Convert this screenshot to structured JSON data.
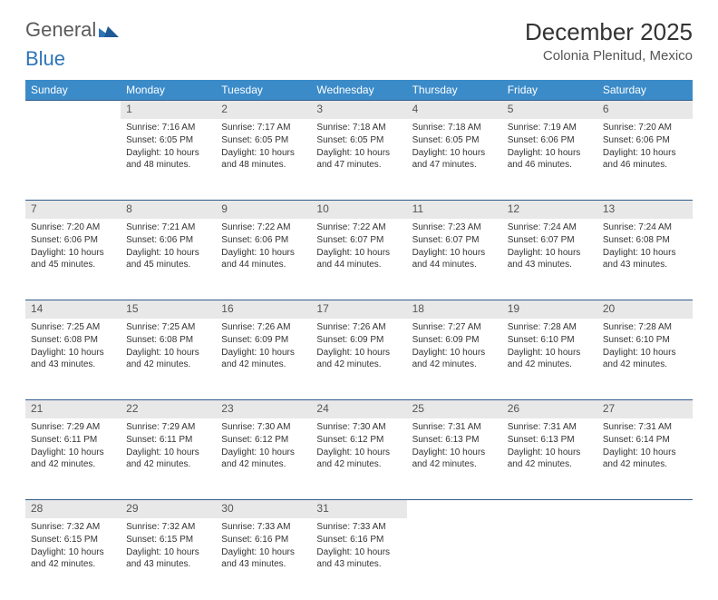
{
  "logo": {
    "text_a": "General",
    "text_b": "Blue"
  },
  "title": "December 2025",
  "location": "Colonia Plenitud, Mexico",
  "weekdays": [
    "Sunday",
    "Monday",
    "Tuesday",
    "Wednesday",
    "Thursday",
    "Friday",
    "Saturday"
  ],
  "header_bg": "#3b8bc9",
  "header_fg": "#ffffff",
  "daynum_bg": "#e8e8e8",
  "border_color": "#2e5c8a",
  "cell_fontsize": 10,
  "weeks": [
    [
      {
        "n": "",
        "sunrise": "",
        "sunset": "",
        "daylight": ""
      },
      {
        "n": "1",
        "sunrise": "Sunrise: 7:16 AM",
        "sunset": "Sunset: 6:05 PM",
        "daylight": "Daylight: 10 hours and 48 minutes."
      },
      {
        "n": "2",
        "sunrise": "Sunrise: 7:17 AM",
        "sunset": "Sunset: 6:05 PM",
        "daylight": "Daylight: 10 hours and 48 minutes."
      },
      {
        "n": "3",
        "sunrise": "Sunrise: 7:18 AM",
        "sunset": "Sunset: 6:05 PM",
        "daylight": "Daylight: 10 hours and 47 minutes."
      },
      {
        "n": "4",
        "sunrise": "Sunrise: 7:18 AM",
        "sunset": "Sunset: 6:05 PM",
        "daylight": "Daylight: 10 hours and 47 minutes."
      },
      {
        "n": "5",
        "sunrise": "Sunrise: 7:19 AM",
        "sunset": "Sunset: 6:06 PM",
        "daylight": "Daylight: 10 hours and 46 minutes."
      },
      {
        "n": "6",
        "sunrise": "Sunrise: 7:20 AM",
        "sunset": "Sunset: 6:06 PM",
        "daylight": "Daylight: 10 hours and 46 minutes."
      }
    ],
    [
      {
        "n": "7",
        "sunrise": "Sunrise: 7:20 AM",
        "sunset": "Sunset: 6:06 PM",
        "daylight": "Daylight: 10 hours and 45 minutes."
      },
      {
        "n": "8",
        "sunrise": "Sunrise: 7:21 AM",
        "sunset": "Sunset: 6:06 PM",
        "daylight": "Daylight: 10 hours and 45 minutes."
      },
      {
        "n": "9",
        "sunrise": "Sunrise: 7:22 AM",
        "sunset": "Sunset: 6:06 PM",
        "daylight": "Daylight: 10 hours and 44 minutes."
      },
      {
        "n": "10",
        "sunrise": "Sunrise: 7:22 AM",
        "sunset": "Sunset: 6:07 PM",
        "daylight": "Daylight: 10 hours and 44 minutes."
      },
      {
        "n": "11",
        "sunrise": "Sunrise: 7:23 AM",
        "sunset": "Sunset: 6:07 PM",
        "daylight": "Daylight: 10 hours and 44 minutes."
      },
      {
        "n": "12",
        "sunrise": "Sunrise: 7:24 AM",
        "sunset": "Sunset: 6:07 PM",
        "daylight": "Daylight: 10 hours and 43 minutes."
      },
      {
        "n": "13",
        "sunrise": "Sunrise: 7:24 AM",
        "sunset": "Sunset: 6:08 PM",
        "daylight": "Daylight: 10 hours and 43 minutes."
      }
    ],
    [
      {
        "n": "14",
        "sunrise": "Sunrise: 7:25 AM",
        "sunset": "Sunset: 6:08 PM",
        "daylight": "Daylight: 10 hours and 43 minutes."
      },
      {
        "n": "15",
        "sunrise": "Sunrise: 7:25 AM",
        "sunset": "Sunset: 6:08 PM",
        "daylight": "Daylight: 10 hours and 42 minutes."
      },
      {
        "n": "16",
        "sunrise": "Sunrise: 7:26 AM",
        "sunset": "Sunset: 6:09 PM",
        "daylight": "Daylight: 10 hours and 42 minutes."
      },
      {
        "n": "17",
        "sunrise": "Sunrise: 7:26 AM",
        "sunset": "Sunset: 6:09 PM",
        "daylight": "Daylight: 10 hours and 42 minutes."
      },
      {
        "n": "18",
        "sunrise": "Sunrise: 7:27 AM",
        "sunset": "Sunset: 6:09 PM",
        "daylight": "Daylight: 10 hours and 42 minutes."
      },
      {
        "n": "19",
        "sunrise": "Sunrise: 7:28 AM",
        "sunset": "Sunset: 6:10 PM",
        "daylight": "Daylight: 10 hours and 42 minutes."
      },
      {
        "n": "20",
        "sunrise": "Sunrise: 7:28 AM",
        "sunset": "Sunset: 6:10 PM",
        "daylight": "Daylight: 10 hours and 42 minutes."
      }
    ],
    [
      {
        "n": "21",
        "sunrise": "Sunrise: 7:29 AM",
        "sunset": "Sunset: 6:11 PM",
        "daylight": "Daylight: 10 hours and 42 minutes."
      },
      {
        "n": "22",
        "sunrise": "Sunrise: 7:29 AM",
        "sunset": "Sunset: 6:11 PM",
        "daylight": "Daylight: 10 hours and 42 minutes."
      },
      {
        "n": "23",
        "sunrise": "Sunrise: 7:30 AM",
        "sunset": "Sunset: 6:12 PM",
        "daylight": "Daylight: 10 hours and 42 minutes."
      },
      {
        "n": "24",
        "sunrise": "Sunrise: 7:30 AM",
        "sunset": "Sunset: 6:12 PM",
        "daylight": "Daylight: 10 hours and 42 minutes."
      },
      {
        "n": "25",
        "sunrise": "Sunrise: 7:31 AM",
        "sunset": "Sunset: 6:13 PM",
        "daylight": "Daylight: 10 hours and 42 minutes."
      },
      {
        "n": "26",
        "sunrise": "Sunrise: 7:31 AM",
        "sunset": "Sunset: 6:13 PM",
        "daylight": "Daylight: 10 hours and 42 minutes."
      },
      {
        "n": "27",
        "sunrise": "Sunrise: 7:31 AM",
        "sunset": "Sunset: 6:14 PM",
        "daylight": "Daylight: 10 hours and 42 minutes."
      }
    ],
    [
      {
        "n": "28",
        "sunrise": "Sunrise: 7:32 AM",
        "sunset": "Sunset: 6:15 PM",
        "daylight": "Daylight: 10 hours and 42 minutes."
      },
      {
        "n": "29",
        "sunrise": "Sunrise: 7:32 AM",
        "sunset": "Sunset: 6:15 PM",
        "daylight": "Daylight: 10 hours and 43 minutes."
      },
      {
        "n": "30",
        "sunrise": "Sunrise: 7:33 AM",
        "sunset": "Sunset: 6:16 PM",
        "daylight": "Daylight: 10 hours and 43 minutes."
      },
      {
        "n": "31",
        "sunrise": "Sunrise: 7:33 AM",
        "sunset": "Sunset: 6:16 PM",
        "daylight": "Daylight: 10 hours and 43 minutes."
      },
      {
        "n": "",
        "sunrise": "",
        "sunset": "",
        "daylight": ""
      },
      {
        "n": "",
        "sunrise": "",
        "sunset": "",
        "daylight": ""
      },
      {
        "n": "",
        "sunrise": "",
        "sunset": "",
        "daylight": ""
      }
    ]
  ]
}
